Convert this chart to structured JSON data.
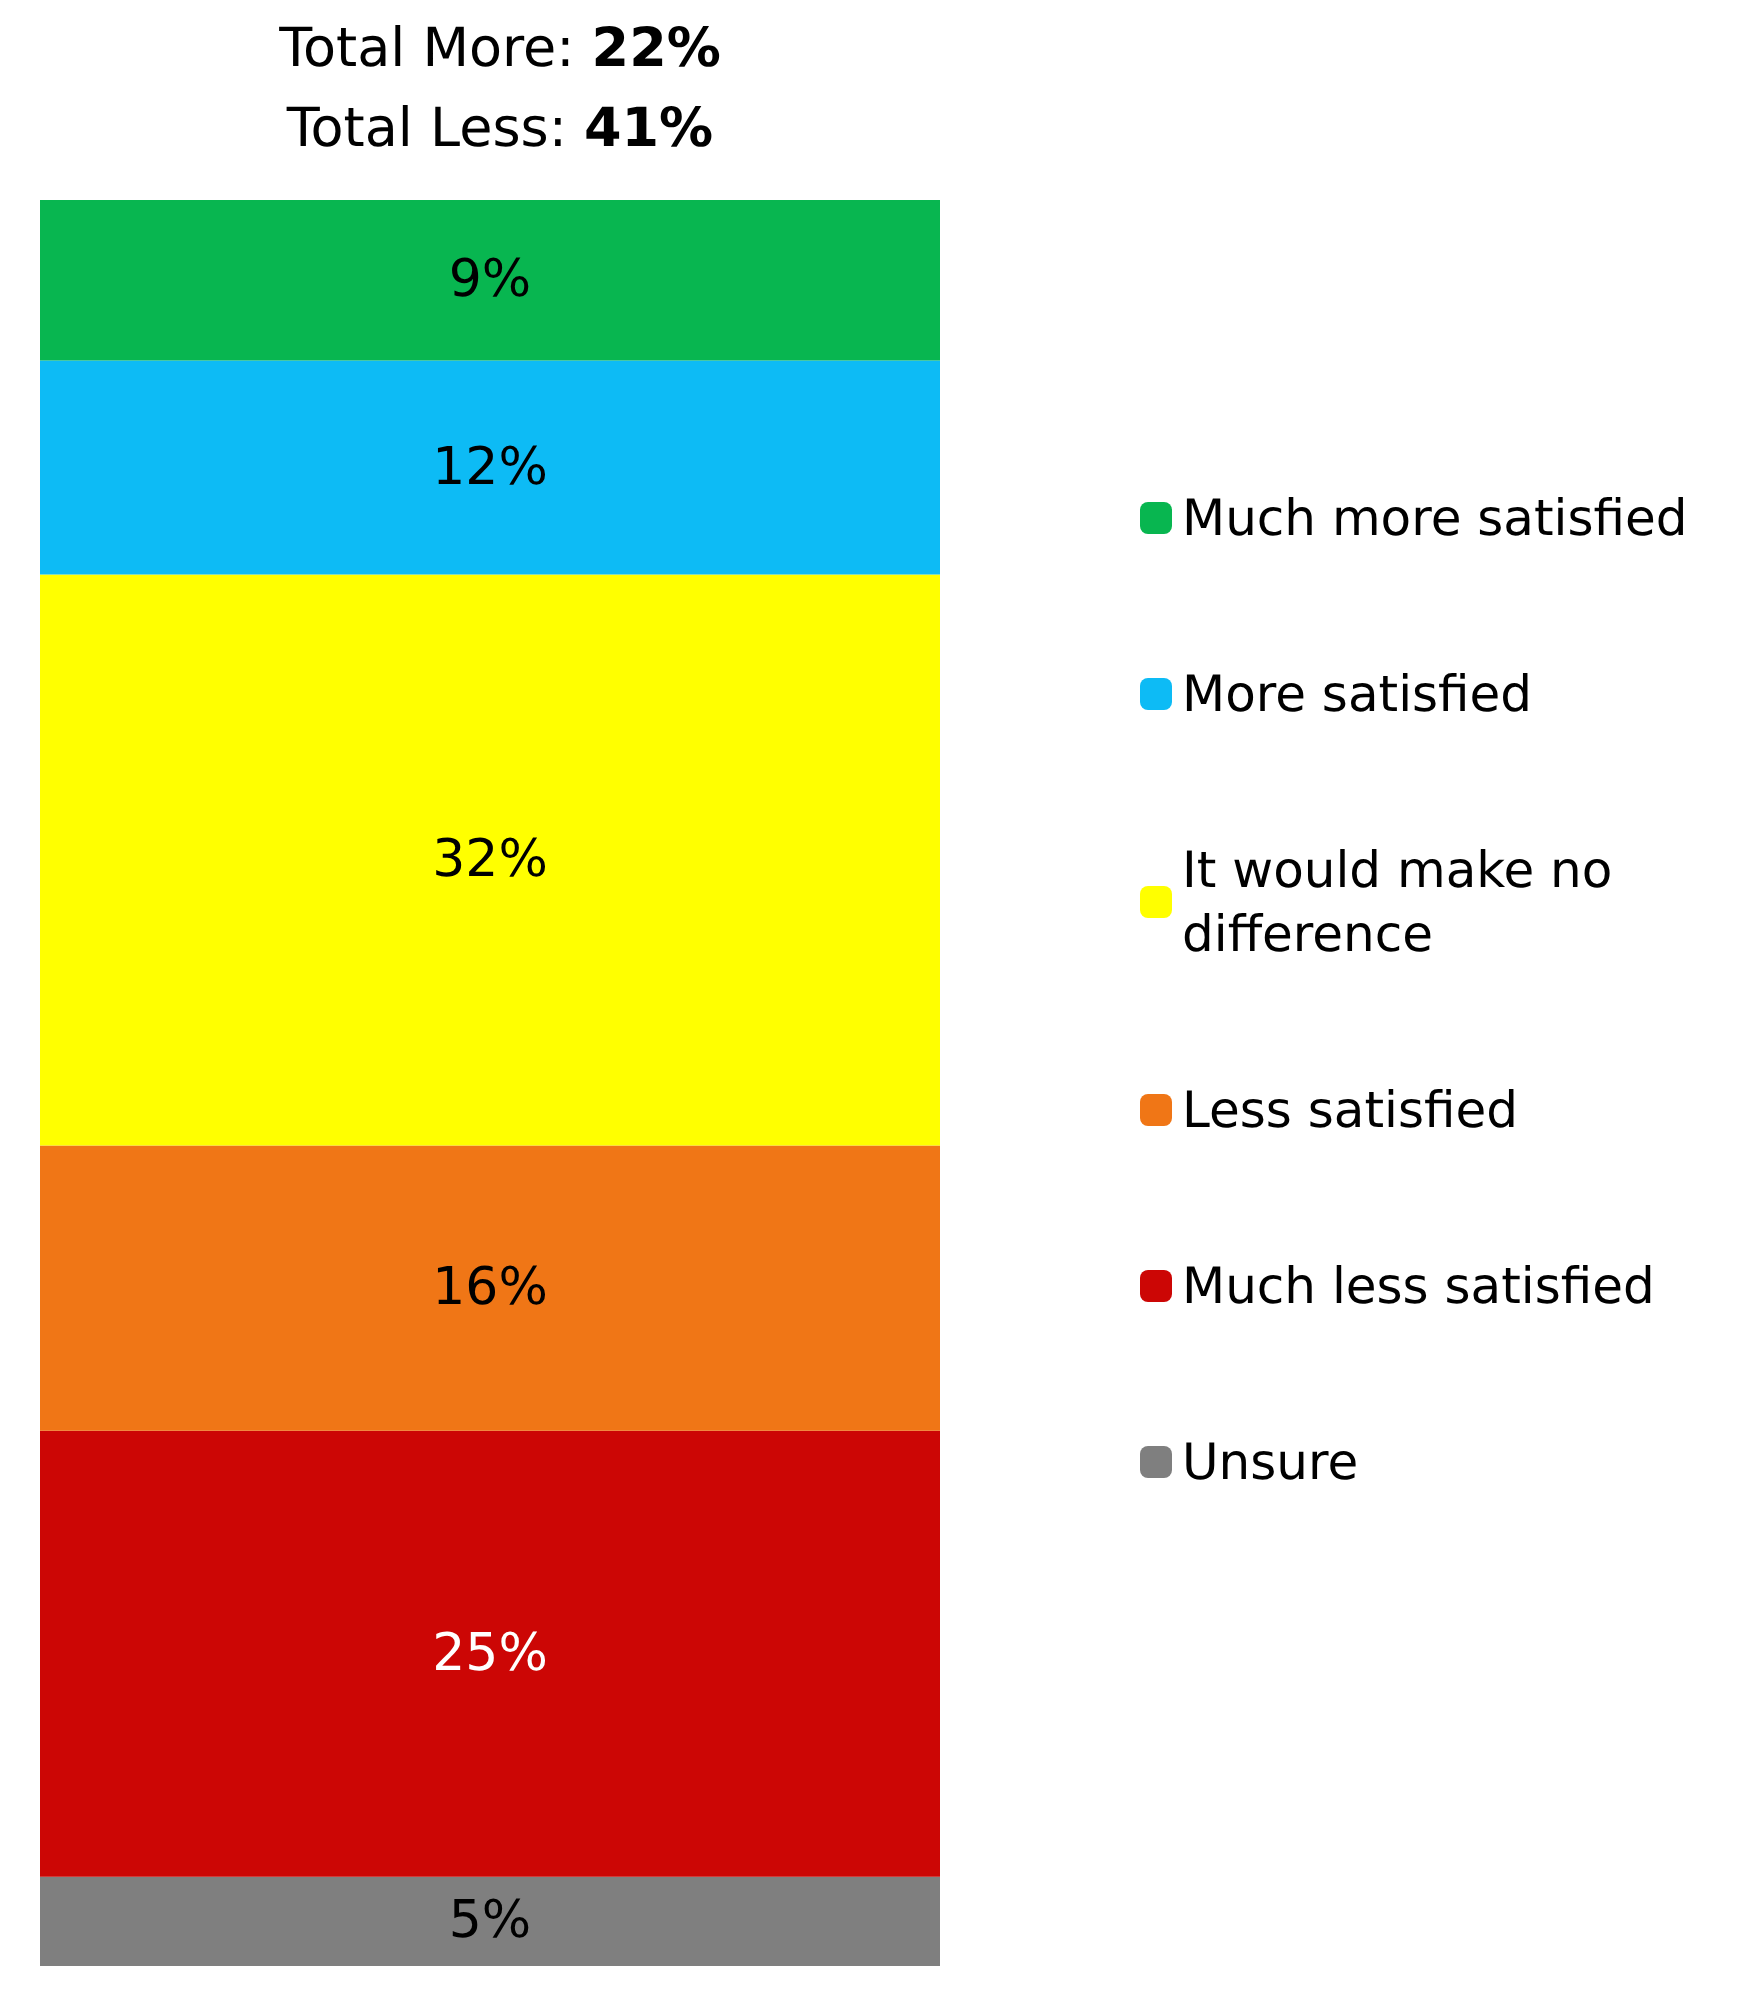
{
  "chart_data": {
    "type": "bar",
    "stacked": true,
    "title": "Total More: 22%",
    "subtitle": "Total Less: 41%",
    "categories": [
      null
    ],
    "data_labels": true,
    "legend": "right",
    "tick_labels": false,
    "series": [
      {
        "name": "Unsure",
        "color": "#7f7f7f",
        "values": [
          5
        ],
        "value_labels": [
          "5%"
        ]
      },
      {
        "name": "Much less satisfied",
        "color": "#cc0605",
        "values": [
          25
        ],
        "value_labels": [
          "25%"
        ]
      },
      {
        "name": "Less satisfied",
        "color": "#f07616",
        "values": [
          16
        ],
        "value_labels": [
          "16%"
        ]
      },
      {
        "name": "It would make no difference",
        "color": "#ffff00",
        "values": [
          32
        ],
        "value_labels": [
          "32%"
        ]
      },
      {
        "name": "More satisfied",
        "color": "#0dbbf5",
        "values": [
          12
        ],
        "value_labels": [
          "12%"
        ]
      },
      {
        "name": "Much more satisfied",
        "color": "#08b650",
        "values": [
          9
        ],
        "value_labels": [
          "9%"
        ]
      }
    ]
  }
}
